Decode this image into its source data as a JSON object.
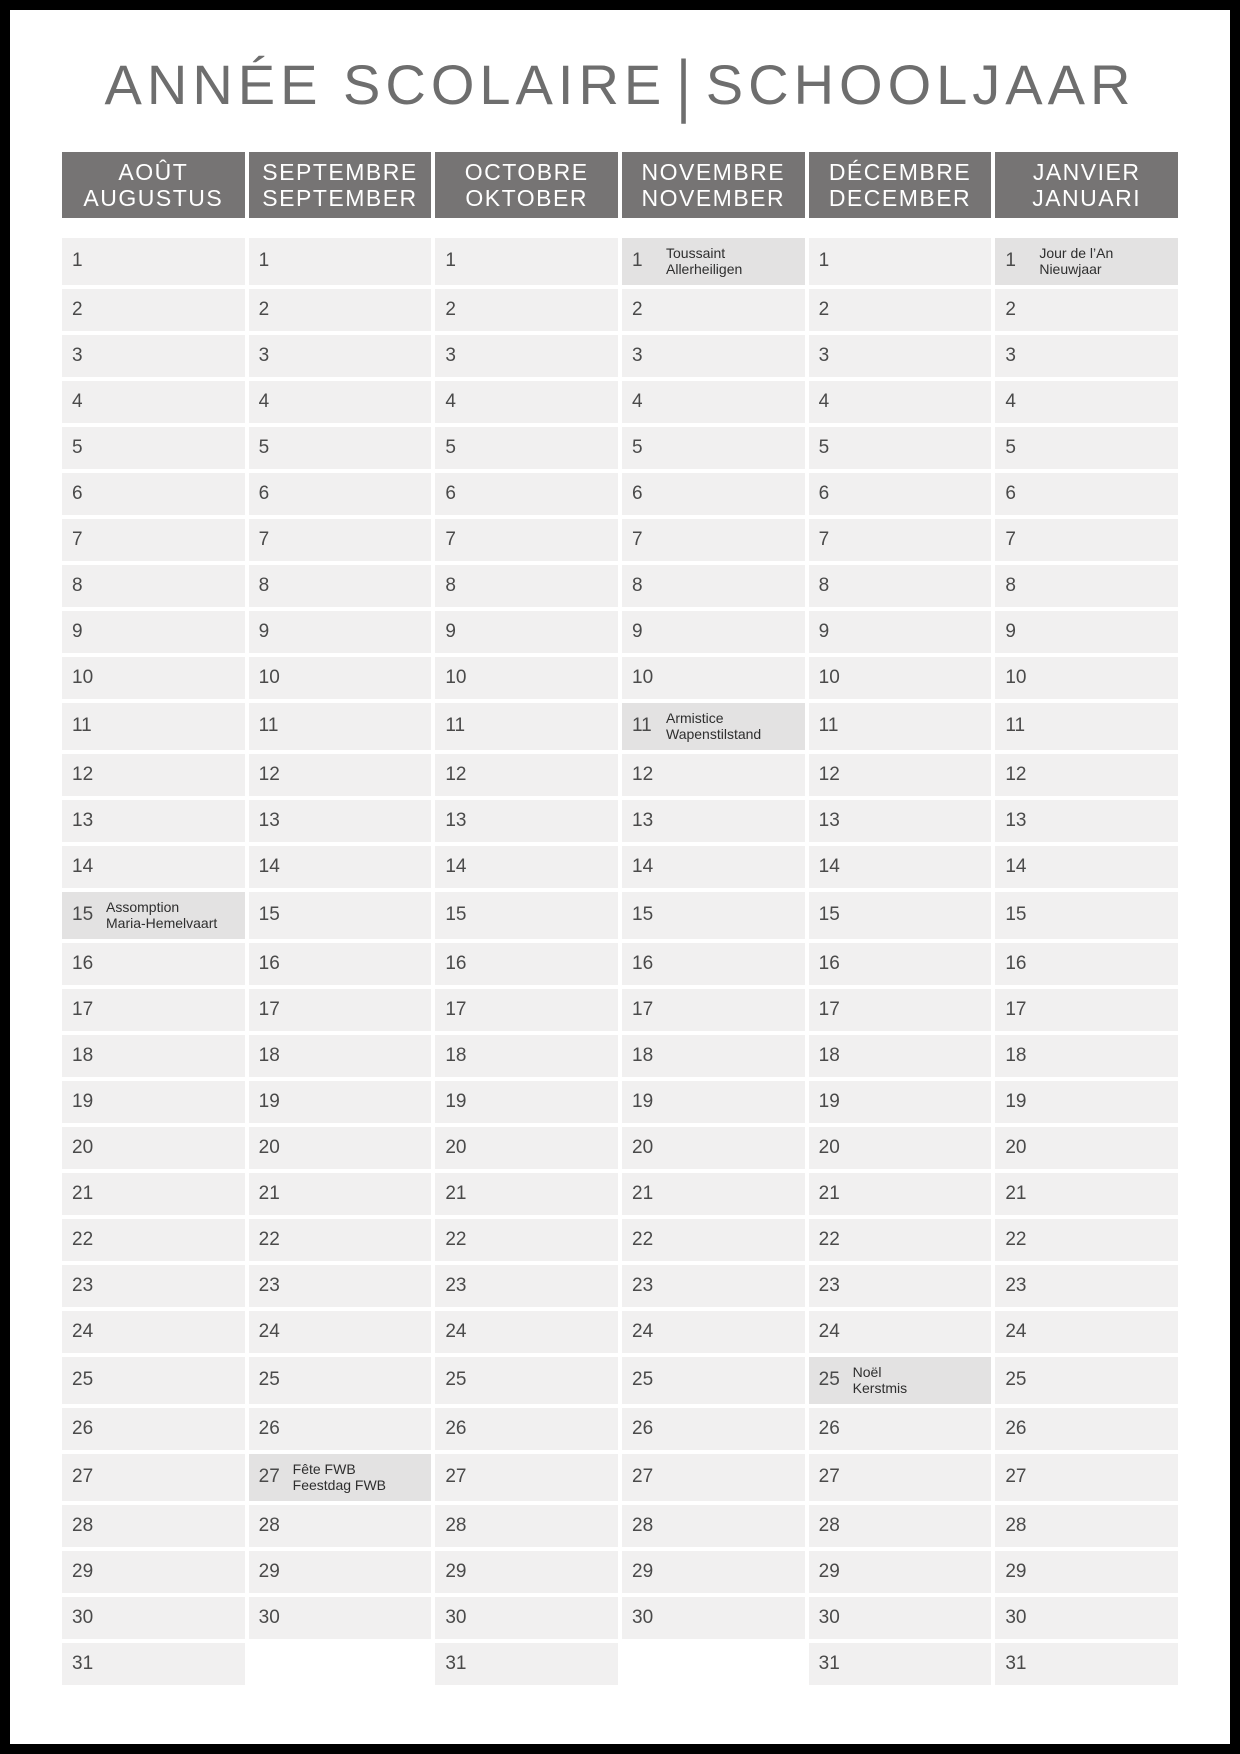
{
  "title": {
    "left": "ANNÉE SCOLAIRE",
    "separator": "|",
    "right": "SCHOOLJAAR"
  },
  "max_days": 31,
  "months": [
    {
      "key": "aout",
      "name_fr": "AOÛT",
      "name_nl": "AUGUSTUS",
      "days": 31,
      "holidays": {
        "15": [
          "Assomption",
          "Maria-Hemelvaart"
        ]
      }
    },
    {
      "key": "septembre",
      "name_fr": "SEPTEMBRE",
      "name_nl": "SEPTEMBER",
      "days": 30,
      "holidays": {
        "27": [
          "Fête FWB",
          "Feestdag FWB"
        ]
      }
    },
    {
      "key": "octobre",
      "name_fr": "OCTOBRE",
      "name_nl": "OKTOBER",
      "days": 31,
      "holidays": {}
    },
    {
      "key": "novembre",
      "name_fr": "NOVEMBRE",
      "name_nl": "NOVEMBER",
      "days": 30,
      "holidays": {
        "1": [
          "Toussaint",
          "Allerheiligen"
        ],
        "11": [
          "Armistice",
          "Wapenstilstand"
        ]
      }
    },
    {
      "key": "decembre",
      "name_fr": "DÉCEMBRE",
      "name_nl": "DECEMBER",
      "days": 31,
      "holidays": {
        "25": [
          "Noël",
          "Kerstmis"
        ]
      }
    },
    {
      "key": "janvier",
      "name_fr": "JANVIER",
      "name_nl": "JANUARI",
      "days": 31,
      "holidays": {
        "1": [
          "Jour de l’An",
          "Nieuwjaar"
        ]
      }
    }
  ],
  "colors": {
    "frame": "#000000",
    "title_text": "#6e6e6e",
    "header_bg": "#767474",
    "header_text": "#ffffff",
    "cell_bg": "#f1f0f0",
    "holiday_cell_bg": "#e3e2e2",
    "day_number": "#4a4a4a",
    "holiday_text": "#2e2e2e"
  }
}
